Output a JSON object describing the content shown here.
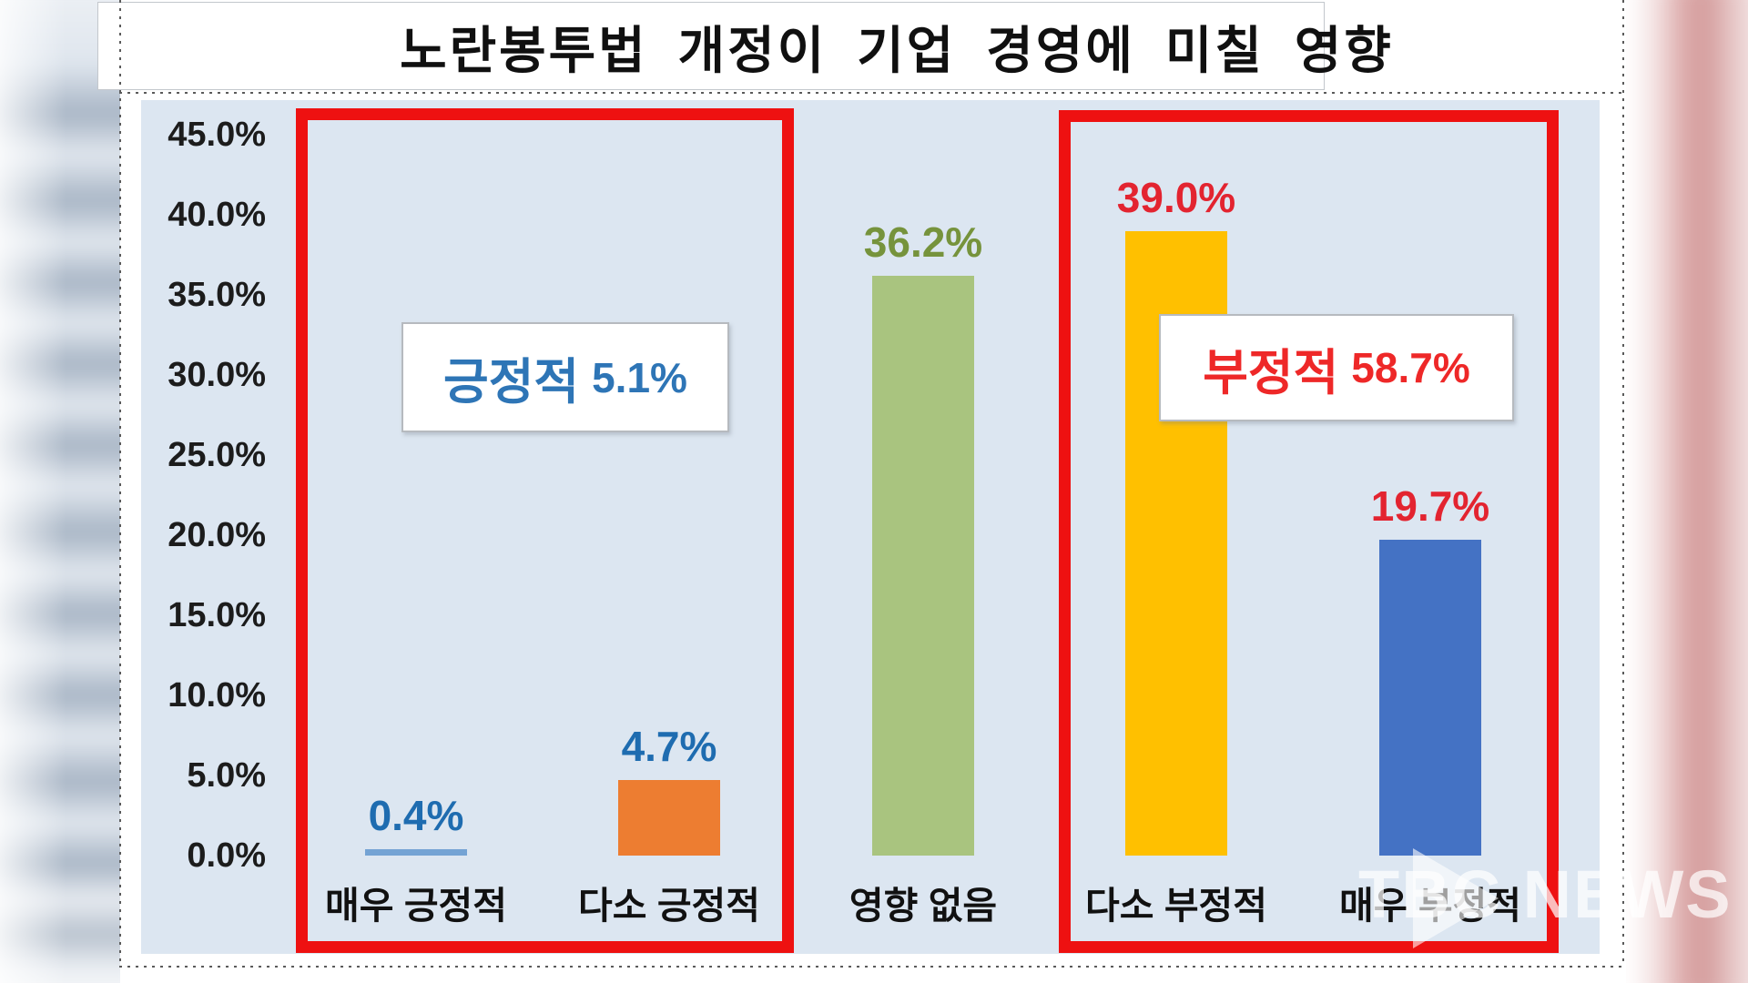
{
  "title": {
    "text": "노란봉투법 개정이 기업 경영에 미칠 영향"
  },
  "chart_data": {
    "type": "bar",
    "title": "노란봉투법 개정이 기업 경영에 미칠 영향",
    "categories": [
      "매우 긍정적",
      "다소 긍정적",
      "영향 없음",
      "다소 부정적",
      "매우 부정적"
    ],
    "values": [
      0.4,
      4.7,
      36.2,
      39.0,
      19.7
    ],
    "value_labels": [
      "0.4%",
      "4.7%",
      "36.2%",
      "39.0%",
      "19.7%"
    ],
    "bar_colors": [
      "#74a3d4",
      "#ed7d31",
      "#a9c47f",
      "#ffc000",
      "#4472c4"
    ],
    "value_label_colors": [
      "#1e6cb0",
      "#1e6cb0",
      "#76933c",
      "#e32430",
      "#e32430"
    ],
    "xlabel": "",
    "ylabel": "",
    "ylim": [
      0,
      45
    ],
    "ytick_labels": [
      "45.0%",
      "40.0%",
      "35.0%",
      "30.0%",
      "25.0%",
      "20.0%",
      "15.0%",
      "10.0%",
      "5.0%",
      "0.0%"
    ],
    "grid": false,
    "legend": false,
    "plot_background": "#dce6f1",
    "groups": [
      {
        "label": "긍정적",
        "value_label": "5.1%",
        "text_color": "#2e75b6",
        "box_color": "#ee1111",
        "members": [
          "매우 긍정적",
          "다소 긍정적"
        ]
      },
      {
        "label": "부정적",
        "value_label": "58.7%",
        "text_color": "#ee2828",
        "box_color": "#ee1111",
        "members": [
          "다소 부정적",
          "매우 부정적"
        ]
      }
    ]
  },
  "watermark": {
    "text": "TBC NEWS",
    "icon": "play-triangle"
  }
}
